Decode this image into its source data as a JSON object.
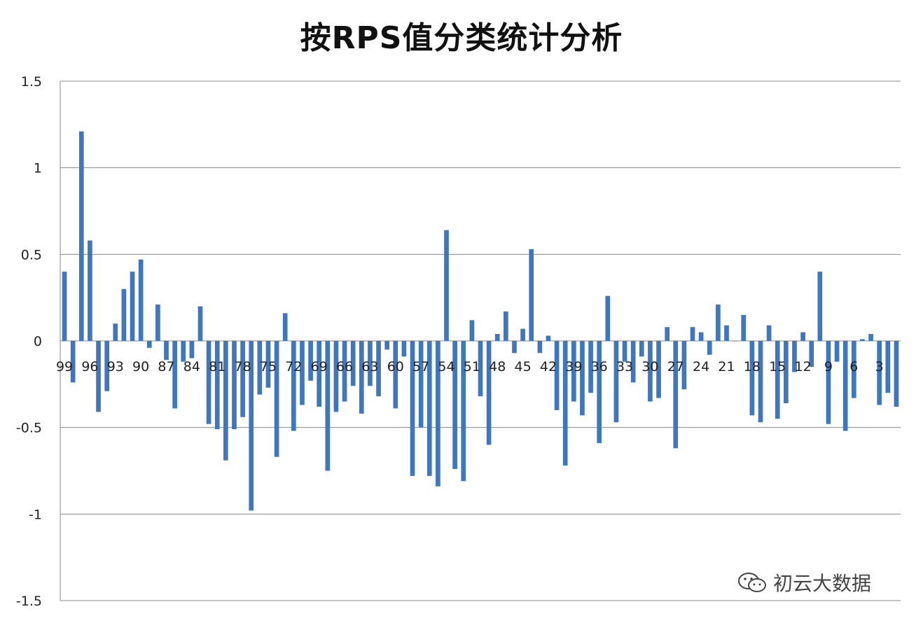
{
  "chart_data": {
    "type": "bar",
    "title": "按RPS值分类统计分析",
    "xlabel": "",
    "ylabel": "",
    "ylim": [
      -1.5,
      1.5
    ],
    "yticks": [
      1.5,
      1,
      0.5,
      0,
      -0.5,
      -1,
      -1.5
    ],
    "ytick_labels": [
      "1.5",
      "1",
      "0.5",
      "0",
      "-0.5",
      "-1",
      "-1.5"
    ],
    "grid": "horizontal",
    "bar_color": "#3f76c0",
    "categories": [
      99,
      98,
      97,
      96,
      95,
      94,
      93,
      92,
      91,
      90,
      89,
      88,
      87,
      86,
      85,
      84,
      83,
      82,
      81,
      80,
      79,
      78,
      77,
      76,
      75,
      74,
      73,
      72,
      71,
      70,
      69,
      68,
      67,
      66,
      65,
      64,
      63,
      62,
      61,
      60,
      59,
      58,
      57,
      56,
      55,
      54,
      53,
      52,
      51,
      50,
      49,
      48,
      47,
      46,
      45,
      44,
      43,
      42,
      41,
      40,
      39,
      38,
      37,
      36,
      35,
      34,
      33,
      32,
      31,
      30,
      29,
      28,
      27,
      26,
      25,
      24,
      23,
      22,
      21,
      20,
      19,
      18,
      17,
      16,
      15,
      14,
      13,
      12,
      11,
      10,
      9,
      8,
      7,
      6,
      5,
      4,
      3,
      2,
      1
    ],
    "tick_labels_shown": [
      "99",
      "96",
      "93",
      "90",
      "87",
      "84",
      "81",
      "78",
      "75",
      "72",
      "69",
      "66",
      "63",
      "60",
      "57",
      "54",
      "51",
      "48",
      "45",
      "42",
      "39",
      "36",
      "33",
      "30",
      "27",
      "24",
      "21",
      "18",
      "15",
      "12",
      "9",
      "6",
      "3"
    ],
    "values": [
      0.4,
      -0.24,
      1.21,
      0.58,
      -0.41,
      -0.29,
      0.1,
      0.3,
      0.4,
      0.47,
      -0.04,
      0.21,
      -0.11,
      -0.39,
      -0.12,
      -0.1,
      0.2,
      -0.48,
      -0.51,
      -0.69,
      -0.51,
      -0.44,
      -0.98,
      -0.31,
      -0.27,
      -0.67,
      0.16,
      -0.52,
      -0.37,
      -0.23,
      -0.38,
      -0.75,
      -0.41,
      -0.35,
      -0.26,
      -0.42,
      -0.26,
      -0.32,
      -0.05,
      -0.39,
      -0.09,
      -0.78,
      -0.5,
      -0.78,
      -0.84,
      0.64,
      -0.74,
      -0.81,
      0.12,
      -0.32,
      -0.6,
      0.04,
      0.17,
      -0.07,
      0.07,
      0.53,
      -0.07,
      0.03,
      -0.4,
      -0.72,
      -0.35,
      -0.43,
      -0.3,
      -0.59,
      0.26,
      -0.47,
      -0.12,
      -0.24,
      -0.09,
      -0.35,
      -0.33,
      0.08,
      -0.62,
      -0.28,
      0.08,
      0.05,
      -0.08,
      0.21,
      0.09,
      0.0,
      0.15,
      -0.43,
      -0.47,
      0.09,
      -0.45,
      -0.36,
      -0.18,
      0.05,
      -0.15,
      0.4,
      -0.48,
      -0.12,
      -0.52,
      -0.33,
      0.01,
      0.04,
      -0.37,
      -0.3,
      -0.38
    ]
  },
  "watermark": {
    "text": "初云大数据",
    "icon": "wechat-icon"
  }
}
